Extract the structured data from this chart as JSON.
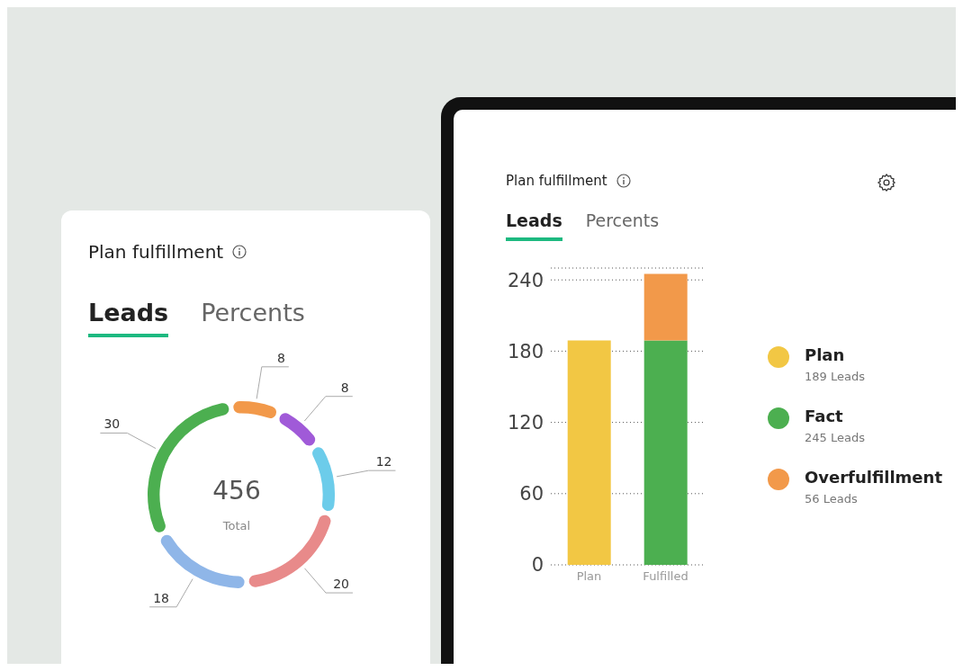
{
  "chart_data": [
    {
      "type": "donut",
      "title": "Plan fulfillment",
      "categories": [
        null,
        null,
        null,
        null,
        null,
        null
      ],
      "values": [
        30,
        8,
        8,
        12,
        20,
        18
      ],
      "colors": [
        "#4caf50",
        "#f2994a",
        "#a05ad8",
        "#6cccea",
        "#e88a8a",
        "#8fb6e8"
      ],
      "data_labels": true,
      "annotations": [
        "Leads",
        "Percents",
        "456",
        "Total"
      ]
    },
    {
      "type": "bar",
      "title": "Plan fulfillment",
      "categories": [
        "Plan",
        "Fulfilled"
      ],
      "stacked": true,
      "ylim": [
        0,
        250
      ],
      "yticks": [
        0,
        60,
        120,
        180,
        240
      ],
      "grid": "y",
      "legend": "right",
      "series": [
        {
          "name": "Plan",
          "color": "#f2c744",
          "values": [
            189,
            null
          ]
        },
        {
          "name": "Fact",
          "color": "#4caf50",
          "values": [
            null,
            189
          ]
        },
        {
          "name": "Overfulfillment",
          "color": "#f2994a",
          "values": [
            null,
            56
          ]
        }
      ],
      "annotations": [
        "Leads",
        "Percents",
        "189 Leads",
        "245 Leads",
        "56 Leads"
      ]
    }
  ]
}
